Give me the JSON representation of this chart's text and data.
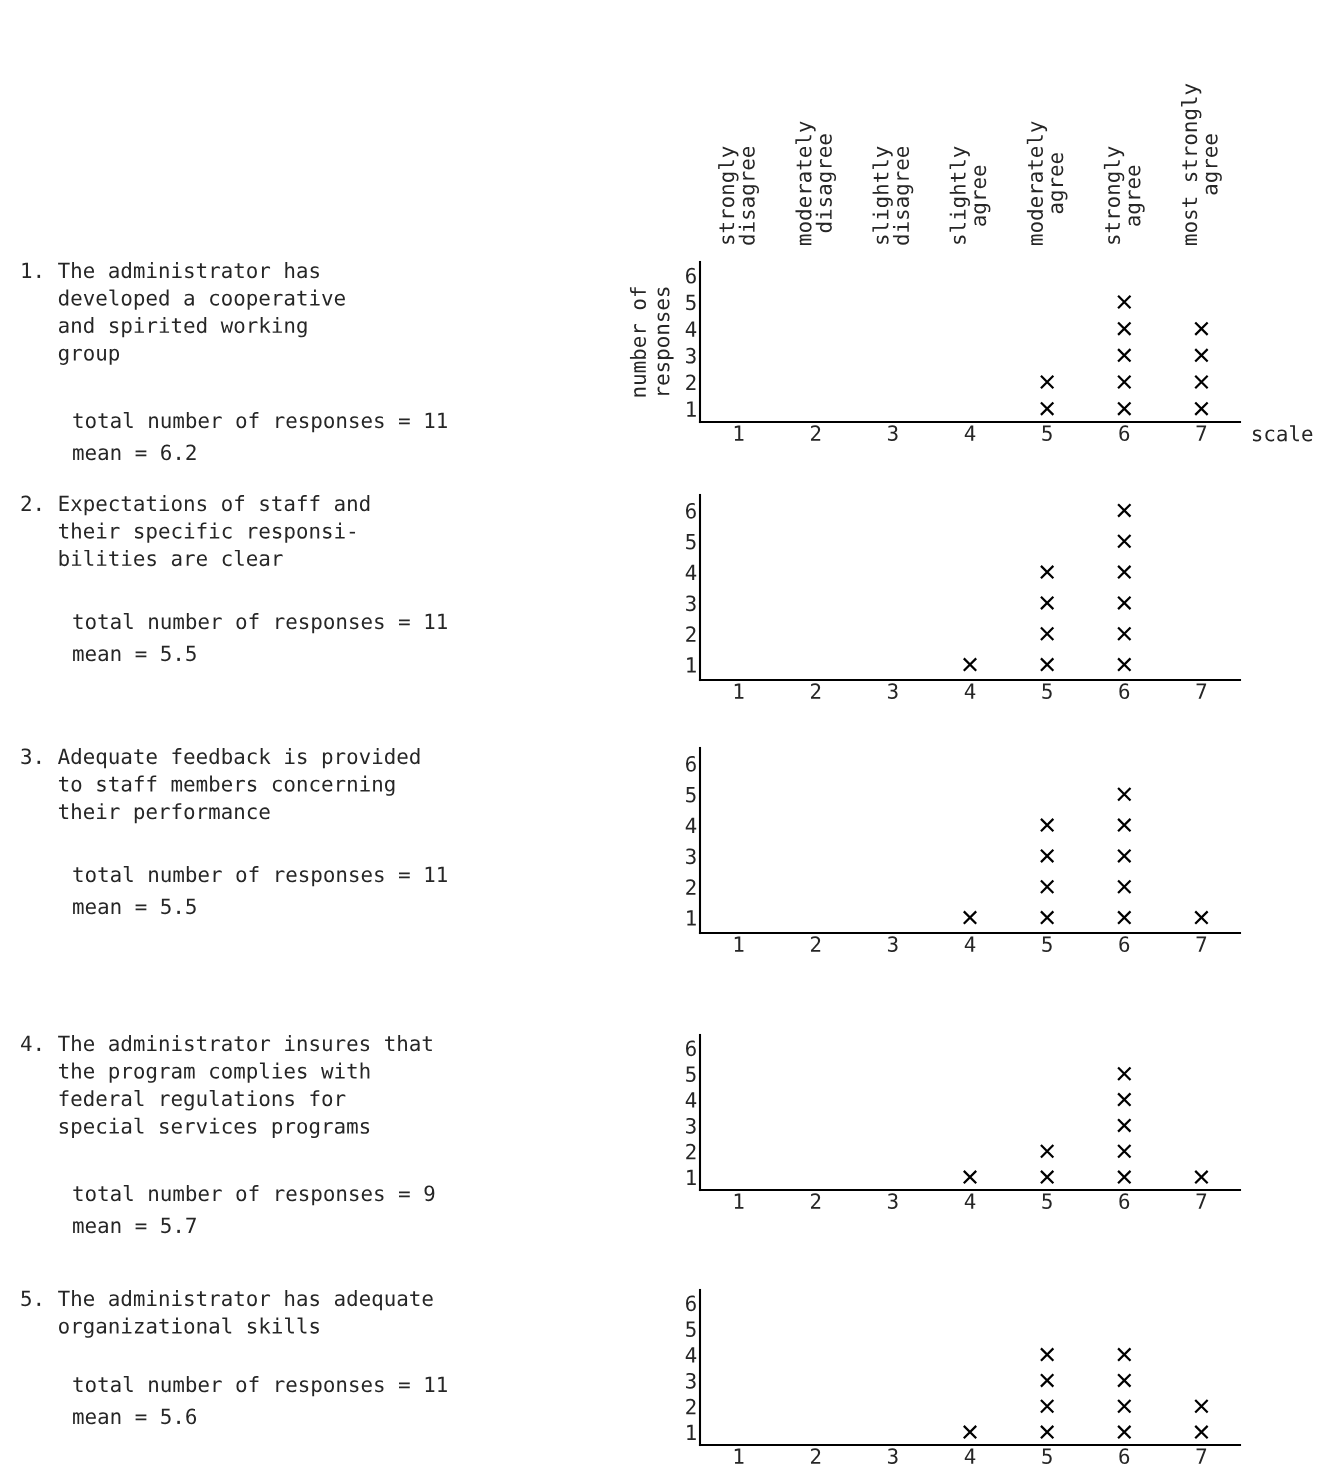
{
  "chart_data": [
    {
      "type": "scatter",
      "annotations": [
        "1. The administrator has\n   developed a cooperative\n   and spirited working\n   group",
        "total number of responses = 11",
        "mean = 6.2",
        "strongly\ndisagree",
        "moderately\ndisagree",
        "slightly\ndisagree",
        "slightly\nagree",
        "moderately\nagree",
        "strongly\nagree",
        "most strongly\nagree"
      ],
      "xlabel": "scale",
      "ylabel": "number of\nresponses",
      "marker": "cross",
      "color": "#000000",
      "x": [
        5,
        5,
        6,
        6,
        6,
        6,
        6,
        7,
        7,
        7,
        7
      ],
      "values": [
        1,
        2,
        1,
        2,
        3,
        4,
        5,
        1,
        2,
        3,
        4
      ],
      "xlim": [
        0.5,
        7.5
      ],
      "xticks": [
        1,
        2,
        3,
        4,
        5,
        6,
        7
      ],
      "ylim": [
        0.5,
        6.5
      ],
      "yticks": [
        1,
        2,
        3,
        4,
        5,
        6
      ]
    },
    {
      "type": "scatter",
      "annotations": [
        "2. Expectations of staff and\n   their specific responsi-\n   bilities are clear",
        "total number of responses = 11",
        "mean = 5.5"
      ],
      "marker": "cross",
      "color": "#000000",
      "x": [
        4,
        5,
        5,
        5,
        5,
        6,
        6,
        6,
        6,
        6,
        6
      ],
      "values": [
        1,
        1,
        2,
        3,
        4,
        1,
        2,
        3,
        4,
        5,
        6
      ],
      "xlim": [
        0.5,
        7.5
      ],
      "xticks": [
        1,
        2,
        3,
        4,
        5,
        6,
        7
      ],
      "ylim": [
        0.5,
        6.5
      ],
      "yticks": [
        1,
        2,
        3,
        4,
        5,
        6
      ]
    },
    {
      "type": "scatter",
      "annotations": [
        "3. Adequate feedback is provided\n   to staff members concerning\n   their performance",
        "total number of responses = 11",
        "mean = 5.5"
      ],
      "marker": "cross",
      "color": "#000000",
      "x": [
        4,
        5,
        5,
        5,
        5,
        6,
        6,
        6,
        6,
        6,
        7
      ],
      "values": [
        1,
        1,
        2,
        3,
        4,
        1,
        2,
        3,
        4,
        5,
        1
      ],
      "xlim": [
        0.5,
        7.5
      ],
      "xticks": [
        1,
        2,
        3,
        4,
        5,
        6,
        7
      ],
      "ylim": [
        0.5,
        6.5
      ],
      "yticks": [
        1,
        2,
        3,
        4,
        5,
        6
      ]
    },
    {
      "type": "scatter",
      "annotations": [
        "4. The administrator insures that\n   the program complies with\n   federal regulations for\n   special services programs",
        "total number of responses = 9",
        "mean = 5.7"
      ],
      "marker": "cross",
      "color": "#000000",
      "x": [
        4,
        5,
        5,
        6,
        6,
        6,
        6,
        6,
        7
      ],
      "values": [
        1,
        1,
        2,
        1,
        2,
        3,
        4,
        5,
        1
      ],
      "xlim": [
        0.5,
        7.5
      ],
      "xticks": [
        1,
        2,
        3,
        4,
        5,
        6,
        7
      ],
      "ylim": [
        0.5,
        6.5
      ],
      "yticks": [
        1,
        2,
        3,
        4,
        5,
        6
      ]
    },
    {
      "type": "scatter",
      "annotations": [
        "5. The administrator has adequate\n   organizational skills",
        "total number of responses = 11",
        "mean = 5.6"
      ],
      "marker": "cross",
      "color": "#000000",
      "x": [
        4,
        5,
        5,
        5,
        5,
        6,
        6,
        6,
        6,
        7,
        7
      ],
      "values": [
        1,
        1,
        2,
        3,
        4,
        1,
        2,
        3,
        4,
        1,
        2
      ],
      "xlim": [
        0.5,
        7.5
      ],
      "xticks": [
        1,
        2,
        3,
        4,
        5,
        6,
        7
      ],
      "ylim": [
        0.5,
        6.5
      ],
      "yticks": [
        1,
        2,
        3,
        4,
        5,
        6
      ]
    }
  ]
}
